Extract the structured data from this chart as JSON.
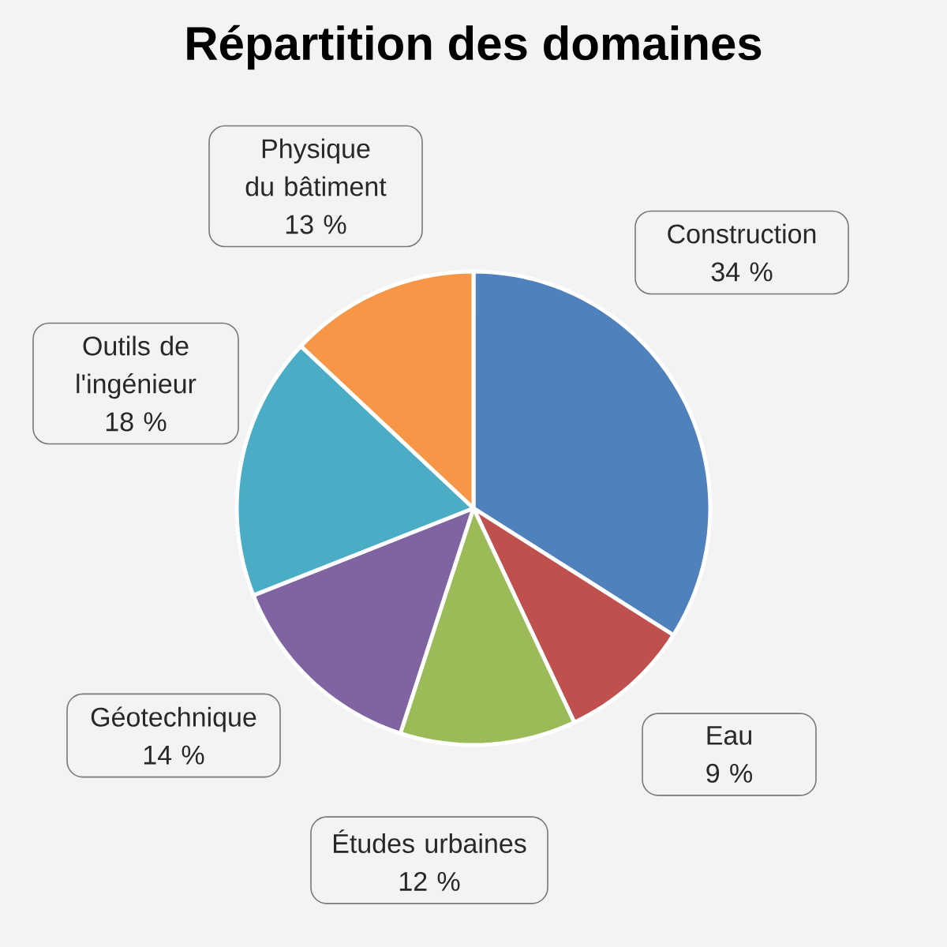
{
  "chart_data": {
    "type": "pie",
    "title": "Répartition des domaines",
    "categories": [
      "Construction",
      "Eau",
      "Études urbaines",
      "Géotechnique",
      "Outils de l'ingénieur",
      "Physique du bâtiment"
    ],
    "values": [
      34,
      9,
      12,
      14,
      18,
      13
    ],
    "value_labels": [
      "34 %",
      "9 %",
      "12 %",
      "14 %",
      "18 %",
      "13 %"
    ],
    "colors": [
      "#4f81bd",
      "#c0504d",
      "#9bbb59",
      "#8064a2",
      "#4bacc6",
      "#f79646"
    ]
  }
}
